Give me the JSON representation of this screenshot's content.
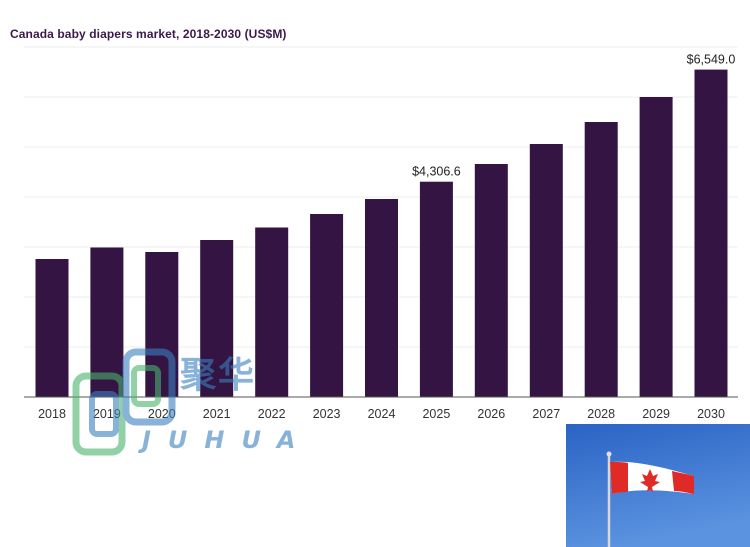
{
  "chart_data": {
    "type": "bar",
    "title": "Canada baby diapers market, 2018-2030 (US$M)",
    "categories": [
      "2018",
      "2019",
      "2020",
      "2021",
      "2022",
      "2023",
      "2024",
      "2025",
      "2026",
      "2027",
      "2028",
      "2029",
      "2030"
    ],
    "series": [
      {
        "values": [
          2760,
          2990,
          2900,
          3140,
          3390,
          3660,
          3960,
          4306.6,
          4660,
          5060,
          5500,
          6000,
          6549.0
        ]
      }
    ],
    "data_labels": {
      "2025": "$4,306.6",
      "2030": "$6,549.0"
    },
    "ylim": [
      0,
      7000
    ],
    "grid": true,
    "xlabel": "",
    "ylabel": "",
    "bar_color": "#331443"
  },
  "watermark": {
    "chinese": "聚华",
    "latin": "JUHUA"
  },
  "colors": {
    "title": "#3a1a4a",
    "grid": "#ececec",
    "axis": "#555555"
  }
}
